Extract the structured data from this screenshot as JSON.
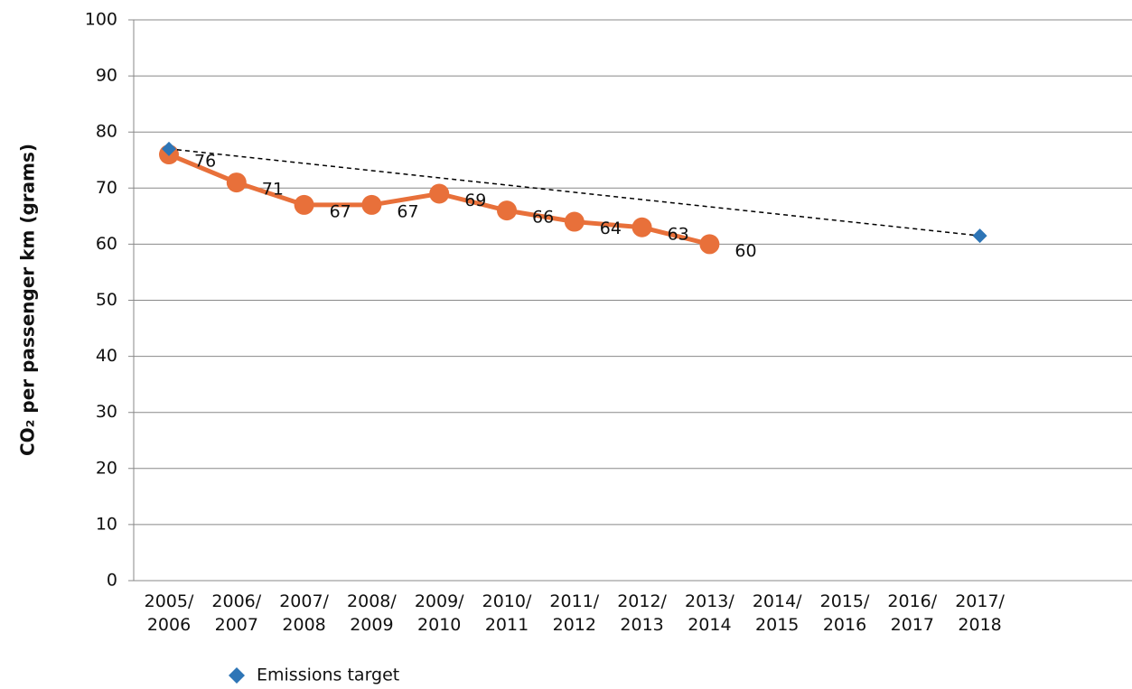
{
  "chart_data": {
    "type": "line",
    "y_label": "CO₂ per passenger km (grams)",
    "categories": [
      "2005/ 2006",
      "2006/ 2007",
      "2007/ 2008",
      "2008/ 2009",
      "2009/ 2010",
      "2010/ 2011",
      "2011/ 2012",
      "2012/ 2013",
      "2013/ 2014",
      "2014/ 2015",
      "2015/ 2016",
      "2016/ 2017",
      "2017/ 2018"
    ],
    "series": [
      {
        "color": "#e8703a",
        "values": [
          76,
          71,
          67,
          67,
          69,
          66,
          64,
          63,
          60,
          null,
          null,
          null,
          null
        ]
      },
      {
        "name": "Emissions target",
        "color": "#2e75b6",
        "values": [
          77,
          null,
          null,
          null,
          null,
          null,
          null,
          null,
          null,
          null,
          null,
          null,
          61.5
        ]
      }
    ],
    "ylim": [
      0,
      100
    ],
    "yticks": [
      0,
      10,
      20,
      30,
      40,
      50,
      60,
      70,
      80,
      90,
      100
    ],
    "grid": true,
    "legend": "bottom"
  }
}
